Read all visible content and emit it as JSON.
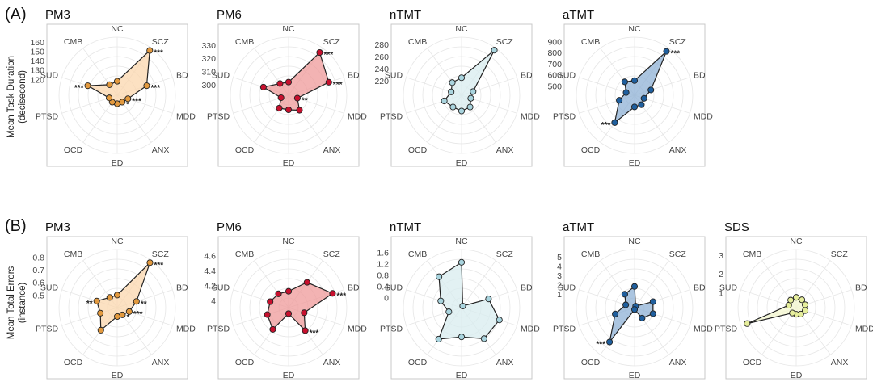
{
  "rows": [
    {
      "label": "(A)",
      "ylabel_lines": [
        "Mean Task Duration",
        "(decisecond)"
      ]
    },
    {
      "label": "(B)",
      "ylabel_lines": [
        "Mean Total Errors",
        "(instance)"
      ]
    }
  ],
  "colors": {
    "PM3": {
      "fill": "#fbd7ae",
      "stroke": "#e39a3f",
      "line": "#222222"
    },
    "PM6": {
      "fill": "#ef9a9a",
      "stroke": "#c8102e",
      "line": "#222222"
    },
    "nTMT": {
      "fill": "#d8ecef",
      "stroke": "#a9d4de",
      "line": "#222222"
    },
    "aTMT": {
      "fill": "#8fb1d6",
      "stroke": "#1f5f9e",
      "line": "#222222"
    },
    "SDS": {
      "fill": "#f4f7cf",
      "stroke": "#e6ee9c",
      "line": "#222222"
    },
    "grid": "#e6e6e6",
    "frame": "#c9c9c9"
  },
  "chart_data": [
    {
      "type": "radar",
      "row": 0,
      "title": "PM3",
      "categories": [
        "NC",
        "SCZ",
        "BD",
        "MDD",
        "ANX",
        "ED",
        "OCD",
        "PTSD",
        "SUD",
        "CMB"
      ],
      "ticks": [
        120,
        130,
        140,
        150,
        160
      ],
      "rmin": 103,
      "rmax": 165,
      "values": [
        118,
        162,
        136,
        115,
        112,
        112,
        112,
        112,
        136,
        117
      ],
      "significance": [
        {
          "index": 1,
          "text": "***"
        },
        {
          "index": 2,
          "text": "***"
        },
        {
          "index": 3,
          "text": "***"
        },
        {
          "index": 4,
          "text": "*"
        },
        {
          "index": 8,
          "text": "***"
        }
      ]
    },
    {
      "type": "radar",
      "row": 0,
      "title": "PM6",
      "categories": [
        "NC",
        "SCZ",
        "BD",
        "MDD",
        "ANX",
        "ED",
        "OCD",
        "PTSD",
        "SUD",
        "CMB"
      ],
      "ticks": [
        300,
        310,
        320,
        330
      ],
      "rmin": 292,
      "rmax": 336,
      "values": [
        302,
        332,
        324,
        299,
        306,
        303,
        304,
        298,
        312,
        303
      ],
      "significance": [
        {
          "index": 1,
          "text": "***"
        },
        {
          "index": 2,
          "text": "***"
        },
        {
          "index": 3,
          "text": "**"
        }
      ]
    },
    {
      "type": "radar",
      "row": 0,
      "title": "nTMT",
      "categories": [
        "NC",
        "SCZ",
        "BD",
        "MDD",
        "ANX",
        "ED",
        "OCD",
        "PTSD",
        "SUD",
        "CMB"
      ],
      "ticks": [
        220,
        240,
        260,
        280
      ],
      "rmin": 196,
      "rmax": 292,
      "values": [
        225,
        288,
        216,
        212,
        220,
        222,
        220,
        226,
        214,
        222
      ],
      "significance": []
    },
    {
      "type": "radar",
      "row": 0,
      "title": "aTMT",
      "categories": [
        "NC",
        "SCZ",
        "BD",
        "MDD",
        "ANX",
        "ED",
        "OCD",
        "PTSD",
        "SUD",
        "CMB"
      ],
      "ticks": [
        500,
        600,
        700,
        800,
        900
      ],
      "rmin": 415,
      "rmax": 940,
      "values": [
        548,
        905,
        570,
        505,
        520,
        520,
        720,
        560,
        495,
        565
      ],
      "significance": [
        {
          "index": 1,
          "text": "***"
        },
        {
          "index": 6,
          "text": "***"
        }
      ]
    },
    {
      "type": "radar",
      "row": 1,
      "title": "PM3",
      "categories": [
        "NC",
        "SCZ",
        "BD",
        "MDD",
        "ANX",
        "ED",
        "OCD",
        "PTSD",
        "SUD",
        "CMB"
      ],
      "ticks": [
        0.5,
        0.6,
        0.7,
        0.8
      ],
      "rmin": 0.4,
      "rmax": 0.86,
      "values": [
        0.5,
        0.84,
        0.56,
        0.5,
        0.47,
        0.47,
        0.62,
        0.54,
        0.57,
        0.5
      ],
      "significance": [
        {
          "index": 1,
          "text": "***"
        },
        {
          "index": 2,
          "text": "**"
        },
        {
          "index": 3,
          "text": "***"
        },
        {
          "index": 4,
          "text": "*"
        },
        {
          "index": 8,
          "text": "**"
        }
      ]
    },
    {
      "type": "radar",
      "row": 1,
      "title": "PM6",
      "categories": [
        "NC",
        "SCZ",
        "BD",
        "MDD",
        "ANX",
        "ED",
        "OCD",
        "PTSD",
        "SUD",
        "CMB"
      ],
      "ticks": [
        4.0,
        4.2,
        4.4,
        4.6
      ],
      "rmin": 3.9,
      "rmax": 4.68,
      "values": [
        4.12,
        4.32,
        4.52,
        4.12,
        4.28,
        3.98,
        4.26,
        4.2,
        4.16,
        4.13
      ],
      "significance": [
        {
          "index": 2,
          "text": "***"
        },
        {
          "index": 4,
          "text": "***"
        }
      ]
    },
    {
      "type": "radar",
      "row": 1,
      "title": "nTMT",
      "categories": [
        "NC",
        "SCZ",
        "BD",
        "MDD",
        "ANX",
        "ED",
        "OCD",
        "PTSD",
        "SUD",
        "CMB"
      ],
      "ticks": [
        0.0,
        0.4,
        0.8,
        1.2,
        1.6
      ],
      "rmin": -0.35,
      "rmax": 1.7,
      "values": [
        1.25,
        -0.28,
        0.65,
        1.05,
        1.0,
        0.68,
        1.02,
        0.12,
        0.42,
        1.0
      ],
      "significance": []
    },
    {
      "type": "radar",
      "row": 1,
      "title": "aTMT",
      "categories": [
        "NC",
        "SCZ",
        "BD",
        "MDD",
        "ANX",
        "ED",
        "OCD",
        "PTSD",
        "SUD",
        "CMB"
      ],
      "ticks": [
        1,
        2,
        3,
        4,
        5
      ],
      "rmin": -0.5,
      "rmax": 5.8,
      "values": [
        1.8,
        -0.3,
        1.6,
        1.6,
        0.9,
        -0.3,
        4.1,
        1.7,
        0.5,
        1.3
      ],
      "significance": [
        {
          "index": 6,
          "text": "***"
        }
      ]
    },
    {
      "type": "radar",
      "row": 1,
      "title": "SDS",
      "categories": [
        "NC",
        "SCZ",
        "BD",
        "MDD",
        "ANX",
        "ED",
        "OCD",
        "PTSD",
        "SUD",
        "CMB"
      ],
      "ticks": [
        1,
        2,
        3
      ],
      "rmin": 0.2,
      "rmax": 3.3,
      "values": [
        0.75,
        0.72,
        0.7,
        0.7,
        0.62,
        0.55,
        0.55,
        2.95,
        0.62,
        0.7
      ],
      "significance": []
    }
  ]
}
